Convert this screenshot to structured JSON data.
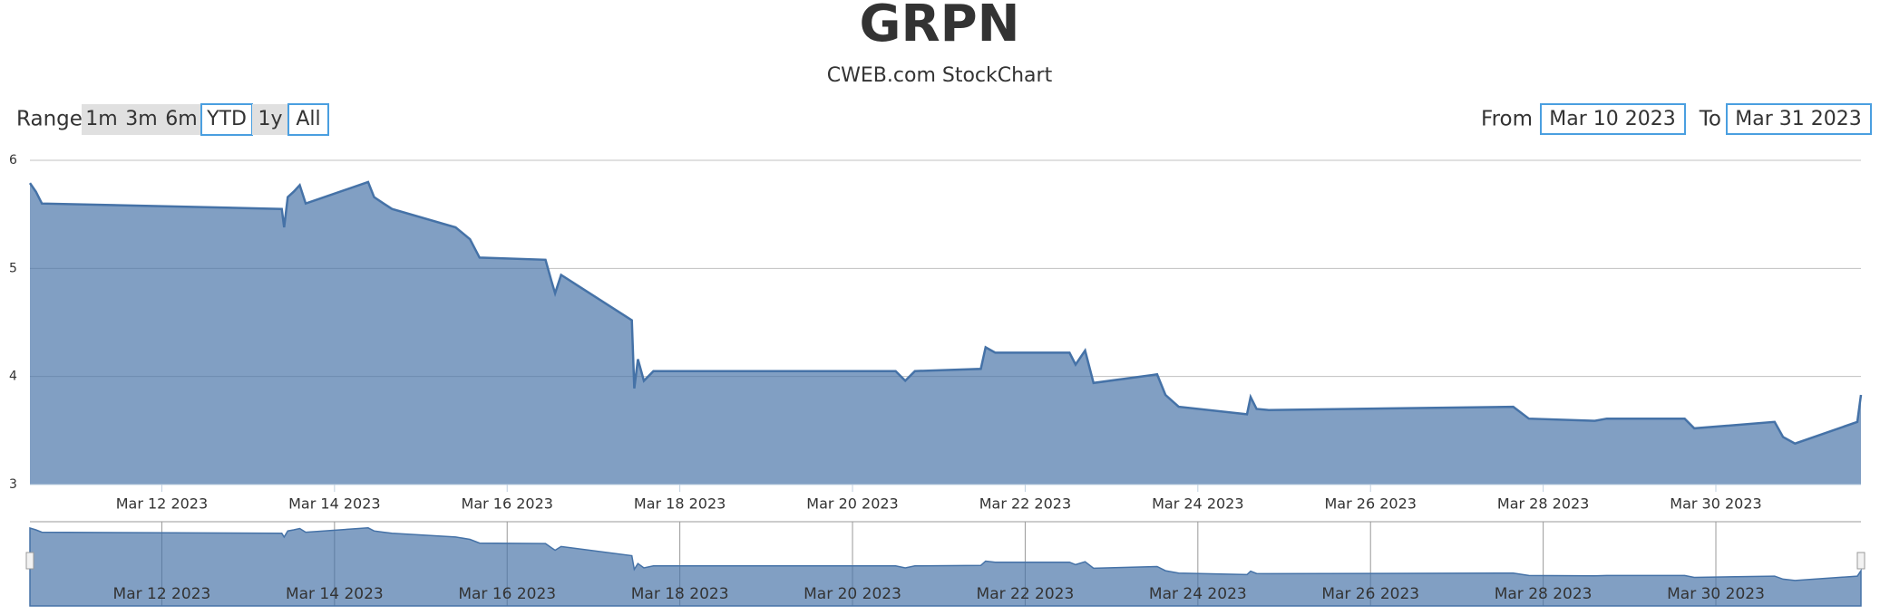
{
  "chart_data": {
    "type": "area",
    "title": "GRPN",
    "subtitle": "CWEB.com StockChart",
    "range_label": "Range",
    "range_buttons": [
      "1m",
      "3m",
      "6m",
      "YTD",
      "1y",
      "All"
    ],
    "from_label": "From",
    "from_date": "Mar 10 2023",
    "to_label": "To",
    "to_date": "Mar 31 2023",
    "grid": true,
    "series": [
      {
        "name": "GRPN",
        "color": "#4572a7",
        "x": [
          "2023-03-10T11:20",
          "2023-03-10T13:00",
          "2023-03-10T14:40",
          "2023-03-13T09:20",
          "2023-03-13T10:00",
          "2023-03-13T11:00",
          "2023-03-13T12:40",
          "2023-03-13T14:20",
          "2023-03-13T16:00",
          "2023-03-14T09:20",
          "2023-03-14T11:00",
          "2023-03-14T13:40",
          "2023-03-14T16:00",
          "2023-03-15T09:40",
          "2023-03-15T13:40",
          "2023-03-15T16:20",
          "2023-03-16T10:40",
          "2023-03-16T12:20",
          "2023-03-16T13:20",
          "2023-03-16T15:00",
          "2023-03-17T10:40",
          "2023-03-17T11:20",
          "2023-03-17T12:20",
          "2023-03-17T14:00",
          "2023-03-17T16:40",
          "2023-03-20T12:00",
          "2023-03-20T14:40",
          "2023-03-20T17:20",
          "2023-03-21T11:40",
          "2023-03-21T13:00",
          "2023-03-21T15:40",
          "2023-03-22T12:20",
          "2023-03-22T14:00",
          "2023-03-22T16:40",
          "2023-03-22T19:00",
          "2023-03-23T12:40",
          "2023-03-23T15:00",
          "2023-03-23T18:40",
          "2023-03-24T13:40",
          "2023-03-24T14:40",
          "2023-03-24T16:20",
          "2023-03-24T19:40",
          "2023-03-27T15:40",
          "2023-03-27T20:00",
          "2023-03-28T14:20",
          "2023-03-28T17:40",
          "2023-03-29T15:20",
          "2023-03-29T18:00",
          "2023-03-30T16:20",
          "2023-03-30T18:40",
          "2023-03-30T22:00",
          "2023-03-31T15:20",
          "2023-03-31T16:20"
        ],
        "values": [
          5.79,
          5.71,
          5.6,
          5.55,
          5.38,
          5.66,
          5.71,
          5.77,
          5.6,
          5.8,
          5.66,
          5.6,
          5.55,
          5.38,
          5.27,
          5.1,
          5.08,
          4.88,
          4.77,
          4.94,
          4.52,
          3.89,
          4.16,
          3.96,
          4.05,
          4.05,
          3.96,
          4.05,
          4.07,
          4.27,
          4.22,
          4.22,
          4.11,
          4.24,
          3.94,
          4.02,
          3.83,
          3.72,
          3.65,
          3.81,
          3.7,
          3.69,
          3.72,
          3.61,
          3.59,
          3.61,
          3.61,
          3.52,
          3.58,
          3.44,
          3.38,
          3.58,
          3.83
        ]
      }
    ],
    "xlim": [
      "2023-03-10T11:20",
      "2023-03-31T16:20"
    ],
    "xticks": [
      {
        "value": "2023-03-12T00:00",
        "label": "Mar 12 2023"
      },
      {
        "value": "2023-03-14T00:00",
        "label": "Mar 14 2023"
      },
      {
        "value": "2023-03-16T00:00",
        "label": "Mar 16 2023"
      },
      {
        "value": "2023-03-18T00:00",
        "label": "Mar 18 2023"
      },
      {
        "value": "2023-03-20T00:00",
        "label": "Mar 20 2023"
      },
      {
        "value": "2023-03-22T00:00",
        "label": "Mar 22 2023"
      },
      {
        "value": "2023-03-24T00:00",
        "label": "Mar 24 2023"
      },
      {
        "value": "2023-03-26T00:00",
        "label": "Mar 26 2023"
      },
      {
        "value": "2023-03-28T00:00",
        "label": "Mar 28 2023"
      },
      {
        "value": "2023-03-30T00:00",
        "label": "Mar 30 2023"
      }
    ],
    "ylim": [
      3,
      6
    ],
    "yticks": [
      3,
      4,
      5,
      6
    ]
  }
}
